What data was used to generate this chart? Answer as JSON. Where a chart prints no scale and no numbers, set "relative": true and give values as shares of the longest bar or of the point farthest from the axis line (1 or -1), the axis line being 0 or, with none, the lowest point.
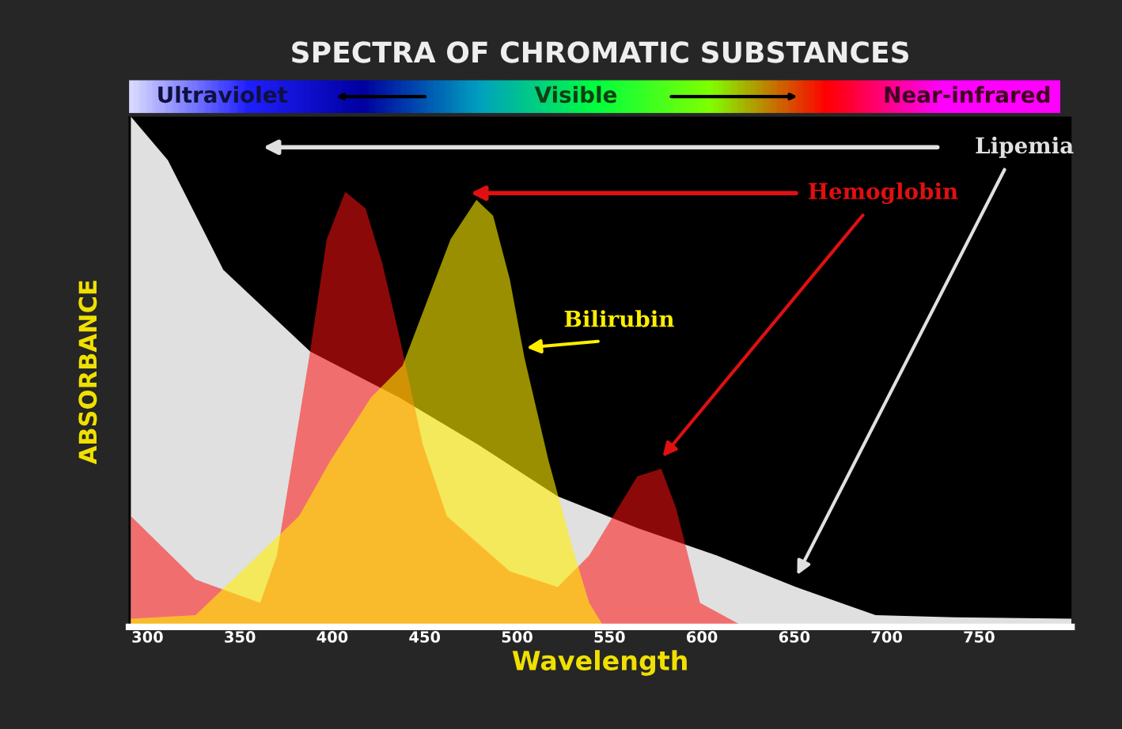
{
  "chart_data": {
    "type": "area",
    "title": "SPECTRA OF CHROMATIC SUBSTANCES",
    "xlabel": "Wavelength",
    "ylabel": "ABSORBANCE",
    "relative": true,
    "xlim": [
      290,
      800
    ],
    "xticks": [
      300,
      350,
      400,
      450,
      500,
      550,
      600,
      650,
      700,
      750
    ],
    "tick_labels": "x",
    "grid": false,
    "annotations": [
      "Ultraviolet",
      "Visible",
      "Near-infrared"
    ],
    "series": [
      {
        "name": "Lipemia",
        "color": "#e0e0e0",
        "x": [
          291,
          311,
          341,
          388,
          436,
          479,
          522,
          565,
          608,
          651,
          694,
          737,
          800
        ],
        "values": [
          1.0,
          0.915,
          0.7,
          0.54,
          0.45,
          0.357,
          0.256,
          0.194,
          0.14,
          0.078,
          0.023,
          0.019,
          0.016
        ]
      },
      {
        "name": "Hemoglobin",
        "color": "#ff1010",
        "x": [
          291,
          326,
          361,
          370,
          388,
          397,
          407,
          418,
          427,
          436,
          449,
          462,
          496,
          522,
          539,
          552,
          565,
          578,
          586,
          599,
          623
        ],
        "values": [
          0.217,
          0.093,
          0.047,
          0.14,
          0.54,
          0.76,
          0.853,
          0.82,
          0.713,
          0.574,
          0.357,
          0.217,
          0.109,
          0.078,
          0.14,
          0.217,
          0.295,
          0.31,
          0.233,
          0.047,
          0
        ]
      },
      {
        "name": "Bilirubin",
        "color": "#ffee00",
        "x": [
          291,
          326,
          382,
          399,
          421,
          438,
          451,
          464,
          478,
          487,
          496,
          504,
          517,
          530,
          539,
          547
        ],
        "values": [
          0.016,
          0.023,
          0.217,
          0.326,
          0.45,
          0.512,
          0.636,
          0.76,
          0.837,
          0.806,
          0.682,
          0.527,
          0.326,
          0.155,
          0.047,
          0
        ]
      }
    ]
  }
}
